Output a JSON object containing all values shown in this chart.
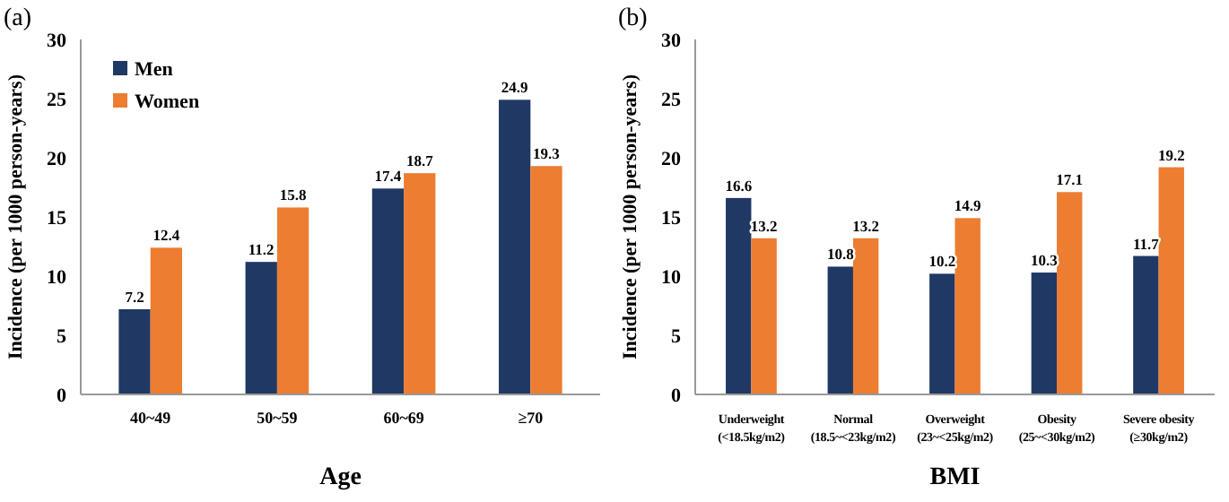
{
  "chart_data": [
    {
      "type": "bar",
      "title": "(a)",
      "xlabel": "Age",
      "ylabel": "Incidence (per 1000 person-years)",
      "categories": [
        "40~49",
        "50~59",
        "60~69",
        "≥70"
      ],
      "series": [
        {
          "name": "Men",
          "color": "#203864",
          "values": [
            7.2,
            11.2,
            17.4,
            24.9
          ]
        },
        {
          "name": "Women",
          "color": "#ed7d31",
          "values": [
            12.4,
            15.8,
            18.7,
            19.3
          ]
        }
      ],
      "ylim": [
        0,
        30
      ],
      "yticks": [
        0,
        5,
        10,
        15,
        20,
        25,
        30
      ],
      "data_labels": true,
      "legend": "top left",
      "grid": false
    },
    {
      "type": "bar",
      "title": "(b)",
      "xlabel": "BMI",
      "ylabel": "Incidence (per 1000 person-years)",
      "categories": [
        "Underweight\n(<18.5kg/m2)",
        "Normal\n(18.5~<23kg/m2)",
        "Overweight\n(23~<25kg/m2)",
        "Obesity\n(25~<30kg/m2)",
        "Severe obesity\n(≥30kg/m2)"
      ],
      "series": [
        {
          "color": "#203864",
          "values": [
            16.6,
            10.8,
            10.2,
            10.3,
            11.7
          ]
        },
        {
          "color": "#ed7d31",
          "values": [
            13.2,
            13.2,
            14.9,
            17.1,
            19.2
          ]
        }
      ],
      "ylim": [
        0,
        30
      ],
      "yticks": [
        0,
        5,
        10,
        15,
        20,
        25,
        30
      ],
      "data_labels": true,
      "grid": false
    }
  ]
}
